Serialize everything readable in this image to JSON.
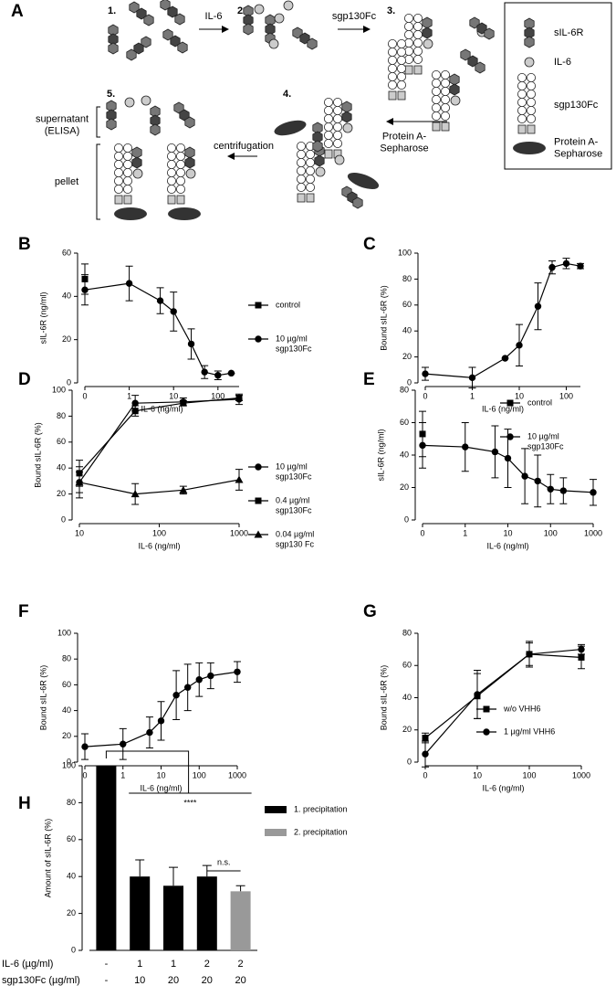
{
  "diagram": {
    "label": "A",
    "steps": [
      "1.",
      "2.",
      "3.",
      "4.",
      "5."
    ],
    "arrows": [
      "IL-6",
      "sgp130Fc",
      "Protein A-\nSepharose",
      "centrifugation"
    ],
    "fractions": [
      "supernatant\n(ELISA)",
      "pellet"
    ],
    "legend": [
      "sIL-6R",
      "IL-6",
      "sgp130Fc",
      "Protein A-\nSepharose"
    ]
  },
  "chart_data": [
    {
      "type": "line",
      "label": "B",
      "xlabel": "IL-6 (ng/ml)",
      "ylabel": "sIL-6R (ng/ml)",
      "xscale": "log",
      "xlim": [
        0,
        300
      ],
      "xticks": [
        0,
        1,
        10,
        100
      ],
      "ylim": [
        0,
        60
      ],
      "yticks": [
        0,
        20,
        40,
        60
      ],
      "series": [
        {
          "name": "control",
          "color": "#000000",
          "marker": "square",
          "x": [
            0
          ],
          "values": [
            48
          ],
          "errors": [
            7
          ]
        },
        {
          "name": "10 µg/ml\nsgp130Fc",
          "color": "#000000",
          "marker": "circle",
          "x": [
            0,
            1,
            5,
            10,
            25,
            50,
            100,
            200
          ],
          "values": [
            43,
            46,
            38,
            33,
            18,
            5,
            3.5,
            4.5
          ],
          "errors": [
            7,
            8,
            6,
            9,
            7,
            3,
            2,
            0
          ]
        }
      ]
    },
    {
      "type": "line",
      "label": "C",
      "xlabel": "IL-6 (ng/ml)",
      "ylabel": "Bound sIL-6R (%)",
      "xscale": "log",
      "xlim": [
        0,
        200
      ],
      "xticks": [
        0,
        1,
        10,
        100
      ],
      "ylim": [
        0,
        100
      ],
      "yticks": [
        0,
        20,
        40,
        60,
        80,
        100
      ],
      "series": [
        {
          "name": null,
          "color": "#000000",
          "marker": "circle",
          "x": [
            0,
            1,
            5,
            10,
            25,
            50,
            100,
            200
          ],
          "values": [
            7,
            4,
            19,
            29,
            59,
            89,
            92,
            90
          ],
          "errors": [
            5,
            8,
            0,
            16,
            18,
            5,
            4,
            2
          ]
        }
      ]
    },
    {
      "type": "line",
      "label": "D",
      "xlabel": "IL-6 (ng/ml)",
      "ylabel": "Bound sIL-6R (%)",
      "xscale": "log",
      "xlim": [
        10,
        1000
      ],
      "xticks": [
        10,
        100,
        1000
      ],
      "ylim": [
        0,
        100
      ],
      "yticks": [
        0,
        20,
        40,
        60,
        80,
        100
      ],
      "series": [
        {
          "name": "10 µg/ml\nsgp130Fc",
          "color": "#000000",
          "marker": "circle",
          "x": [
            10,
            50,
            200,
            1000
          ],
          "values": [
            29,
            90,
            91,
            93
          ],
          "errors": [
            8,
            6,
            3,
            4
          ]
        },
        {
          "name": "0.4 µg/ml\nsgp130Fc",
          "color": "#000000",
          "marker": "square",
          "x": [
            10,
            50,
            200,
            1000
          ],
          "values": [
            36,
            84,
            90,
            94
          ],
          "errors": [
            10,
            4,
            2,
            2
          ]
        },
        {
          "name": "0.04 µg/ml\nsgp130 Fc",
          "color": "#000000",
          "marker": "triangle",
          "x": [
            10,
            50,
            200,
            1000
          ],
          "values": [
            29,
            20,
            23,
            31
          ],
          "errors": [
            12,
            8,
            3,
            8
          ]
        }
      ]
    },
    {
      "type": "line",
      "label": "E",
      "xlabel": "IL-6 (ng/ml)",
      "ylabel": "sIL-6R (ng/ml)",
      "xscale": "log",
      "xlim": [
        0,
        1000
      ],
      "xticks": [
        0,
        1,
        10,
        100,
        1000
      ],
      "ylim": [
        0,
        80
      ],
      "yticks": [
        0,
        20,
        40,
        60,
        80
      ],
      "series": [
        {
          "name": "control",
          "color": "#000000",
          "marker": "square",
          "x": [
            0
          ],
          "values": [
            53
          ],
          "errors": [
            14
          ]
        },
        {
          "name": "10 µg/ml\nsgp130Fc",
          "color": "#000000",
          "marker": "circle",
          "x": [
            0,
            1,
            5,
            10,
            25,
            50,
            100,
            200,
            1000
          ],
          "values": [
            46,
            45,
            42,
            38,
            27,
            24,
            19,
            18,
            17
          ],
          "errors": [
            14,
            15,
            16,
            18,
            17,
            16,
            9,
            8,
            8
          ]
        }
      ]
    },
    {
      "type": "line",
      "label": "F",
      "xlabel": "IL-6 (ng/ml)",
      "ylabel": "Bound sIL-6R (%)",
      "xscale": "log",
      "xlim": [
        0,
        1000
      ],
      "xticks": [
        0,
        1,
        10,
        100,
        1000
      ],
      "ylim": [
        0,
        100
      ],
      "yticks": [
        0,
        20,
        40,
        60,
        80,
        100
      ],
      "series": [
        {
          "name": null,
          "color": "#000000",
          "marker": "circle",
          "x": [
            0,
            1,
            5,
            10,
            25,
            50,
            100,
            200,
            1000
          ],
          "values": [
            12,
            14,
            23,
            32,
            52,
            58,
            64,
            67,
            70
          ],
          "errors": [
            10,
            12,
            12,
            15,
            19,
            18,
            13,
            10,
            8
          ]
        }
      ]
    },
    {
      "type": "line",
      "label": "G",
      "xlabel": "IL-6 (ng/ml)",
      "ylabel": "Bound sIL-6R (%)",
      "xscale": "log",
      "xlim": [
        0,
        1000
      ],
      "xticks": [
        0,
        10,
        100,
        1000
      ],
      "ylim": [
        0,
        80
      ],
      "yticks": [
        0,
        20,
        40,
        60,
        80
      ],
      "series": [
        {
          "name": "w/o VHH6",
          "color": "#000000",
          "marker": "square",
          "x": [
            0,
            10,
            100,
            1000
          ],
          "values": [
            15,
            41,
            67,
            65
          ],
          "errors": [
            3,
            14,
            8,
            7
          ]
        },
        {
          "name": "1 µg/ml VHH6",
          "color": "#000000",
          "marker": "circle",
          "x": [
            0,
            10,
            100,
            1000
          ],
          "values": [
            5,
            42,
            67,
            70
          ],
          "errors": [
            8,
            15,
            7,
            3
          ]
        }
      ]
    },
    {
      "type": "bar",
      "label": "H",
      "ylabel": "Amount of sIL-6R (%)",
      "ylim": [
        0,
        100
      ],
      "yticks": [
        0,
        20,
        40,
        60,
        80,
        100
      ],
      "category_rows": [
        {
          "label": "IL-6 (µg/ml)",
          "values": [
            "-",
            "1",
            "1",
            "2",
            "2"
          ]
        },
        {
          "label": "sgp130Fc (µg/ml)",
          "values": [
            "-",
            "10",
            "20",
            "20",
            "20"
          ]
        }
      ],
      "series": [
        {
          "name": "1. precipitation",
          "color": "#000000",
          "values": [
            100,
            40,
            35,
            40,
            null
          ],
          "errors": [
            0,
            9,
            10,
            6,
            null
          ]
        },
        {
          "name": "2. precipitation",
          "color": "#999999",
          "values": [
            null,
            null,
            null,
            null,
            32
          ],
          "errors": [
            null,
            null,
            null,
            null,
            3
          ]
        }
      ],
      "annotations": [
        "****",
        "n.s."
      ]
    }
  ]
}
